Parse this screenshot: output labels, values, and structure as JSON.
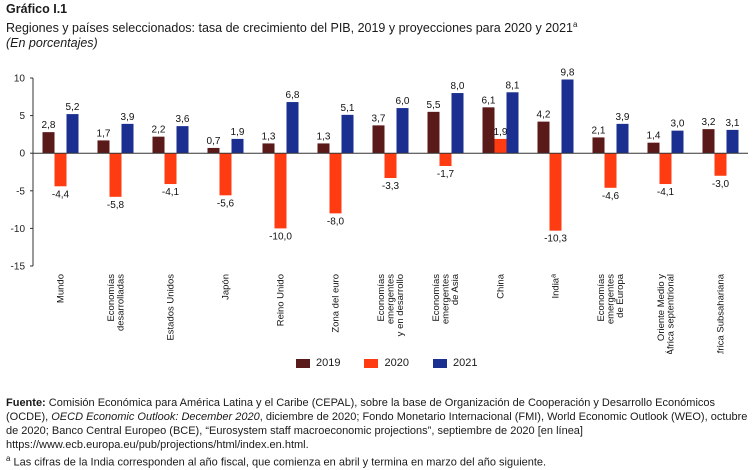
{
  "header": {
    "label": "Gráfico I.1",
    "title": "Regiones y países seleccionados: tasa de crecimiento del PIB, 2019 y proyecciones para 2020 y 2021",
    "title_sup": "a",
    "subtitle": "(En porcentajes)"
  },
  "chart_data": {
    "type": "bar",
    "categories": [
      "Mundo",
      "Economías desarrolladas",
      "Estados Unidos",
      "Japón",
      "Reino Unido",
      "Zona del euro",
      "Economías emergentes y en desarrollo",
      "Economías emergentes de Asia",
      "China",
      "India",
      "Economías emergentes de Europa",
      "Oriente Medio y África septentrional",
      "África Subsahariana"
    ],
    "category_lines": [
      [
        "Mundo"
      ],
      [
        "Economías",
        "desarrolladas"
      ],
      [
        "Estados Unidos"
      ],
      [
        "Japón"
      ],
      [
        "Reino Unido"
      ],
      [
        "Zona del euro"
      ],
      [
        "Economías",
        "emergentes",
        "y en desarrollo"
      ],
      [
        "Economías",
        "emergentes",
        "de Asia"
      ],
      [
        "China"
      ],
      [
        "India"
      ],
      [
        "Economías",
        "emergentes",
        "de Europa"
      ],
      [
        "Oriente Medio y",
        "África septentrional"
      ],
      [
        "África Subsahariana"
      ]
    ],
    "category_sup": [
      "",
      "",
      "",
      "",
      "",
      "",
      "",
      "",
      "",
      "a",
      "",
      "",
      ""
    ],
    "series": [
      {
        "name": "2019",
        "color": "#5b1a1a",
        "values": [
          2.8,
          1.7,
          2.2,
          0.7,
          1.3,
          1.3,
          3.7,
          5.5,
          6.1,
          4.2,
          2.1,
          1.4,
          3.2
        ],
        "labels": [
          "2,8",
          "1,7",
          "2,2",
          "0,7",
          "1,3",
          "1,3",
          "3,7",
          "5,5",
          "6,1",
          "4,2",
          "2,1",
          "1,4",
          "3,2"
        ]
      },
      {
        "name": "2020",
        "color": "#ff3b12",
        "values": [
          -4.4,
          -5.8,
          -4.1,
          -5.6,
          -10.0,
          -8.0,
          -3.3,
          -1.7,
          1.9,
          -10.3,
          -4.6,
          -4.1,
          -3.0
        ],
        "labels": [
          "-4,4",
          "-5,8",
          "-4,1",
          "-5,6",
          "-10,0",
          "-8,0",
          "-3,3",
          "-1,7",
          "1,9",
          "-10,3",
          "-4,6",
          "-4,1",
          "-3,0"
        ]
      },
      {
        "name": "2021",
        "color": "#1a2f8f",
        "values": [
          5.2,
          3.9,
          3.6,
          1.9,
          6.8,
          5.1,
          6.0,
          8.0,
          8.1,
          9.8,
          3.9,
          3.0,
          3.1
        ],
        "labels": [
          "5,2",
          "3,9",
          "3,6",
          "1,9",
          "6,8",
          "5,1",
          "6,0",
          "8,0",
          "8,1",
          "9,8",
          "3,9",
          "3,0",
          "3,1"
        ]
      }
    ],
    "yticks": [
      10,
      5,
      0,
      -5,
      -10,
      -15
    ],
    "ylim": [
      -15,
      10
    ],
    "grid": false,
    "legend_position": "bottom"
  },
  "footer": {
    "source_label": "Fuente:",
    "source_text_1": "Comisión Económica para América Latina y el Caribe (CEPAL), sobre la base de Organización de Cooperación y Desarrollo Económicos (OCDE),",
    "source_italic": "OECD Economic Outlook: December 2020",
    "source_text_2": ", diciembre de 2020; Fondo Monetario Internacional (FMI), World Economic Outlook (WEO), octubre de 2020; Banco Central Europeo (BCE), “Eurosystem staff macroeconomic projections”, septiembre de 2020 [en línea] https://www.ecb.europa.eu/pub/projections/html/index.en.html.",
    "note_sup": "a",
    "note_text": "Las cifras de la India corresponden al año fiscal, que comienza en abril y termina en marzo del año siguiente."
  }
}
